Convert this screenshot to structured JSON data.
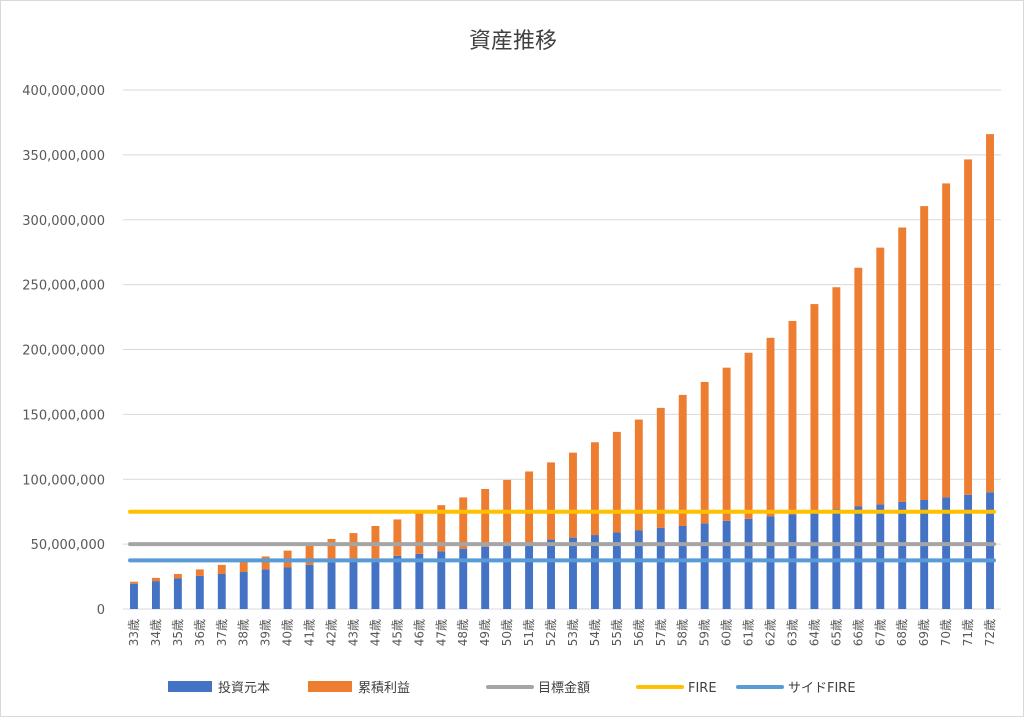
{
  "chart_data": {
    "type": "bar",
    "stacked": true,
    "title": "資産推移",
    "xlabel": "",
    "ylabel": "",
    "ylim": [
      0,
      400000000
    ],
    "ytick_step": 50000000,
    "yticks": [
      "0",
      "50,000,000",
      "100,000,000",
      "150,000,000",
      "200,000,000",
      "250,000,000",
      "300,000,000",
      "350,000,000",
      "400,000,000"
    ],
    "grid": true,
    "legend_position": "bottom",
    "categories": [
      "33歳",
      "34歳",
      "35歳",
      "36歳",
      "37歳",
      "38歳",
      "39歳",
      "40歳",
      "41歳",
      "42歳",
      "43歳",
      "44歳",
      "45歳",
      "46歳",
      "47歳",
      "48歳",
      "49歳",
      "50歳",
      "51歳",
      "52歳",
      "53歳",
      "54歳",
      "55歳",
      "56歳",
      "57歳",
      "58歳",
      "59歳",
      "60歳",
      "61歳",
      "62歳",
      "63歳",
      "64歳",
      "65歳",
      "66歳",
      "67歳",
      "68歳",
      "69歳",
      "70歳",
      "71歳",
      "72歳"
    ],
    "series": [
      {
        "name": "投資元本",
        "color": "#4472c4",
        "kind": "bar",
        "values": [
          19500000,
          21500000,
          23500000,
          25500000,
          27000000,
          28500000,
          30500000,
          32000000,
          34000000,
          36000000,
          37500000,
          39000000,
          41000000,
          42500000,
          44500000,
          46500000,
          48000000,
          50000000,
          51500000,
          53500000,
          55000000,
          57000000,
          59000000,
          60500000,
          62500000,
          64000000,
          66000000,
          68000000,
          69500000,
          71500000,
          73000000,
          75000000,
          77000000,
          79000000,
          80500000,
          82500000,
          84000000,
          86000000,
          88000000,
          90000000
        ]
      },
      {
        "name": "累積利益",
        "color": "#ed7d31",
        "kind": "bar",
        "values": [
          1500000,
          2500000,
          3500000,
          5000000,
          7000000,
          8500000,
          10000000,
          13000000,
          15000000,
          18000000,
          21000000,
          25000000,
          28000000,
          32000000,
          35500000,
          39500000,
          44500000,
          49500000,
          54500000,
          59500000,
          65500000,
          71500000,
          77500000,
          85500000,
          92500000,
          101000000,
          109000000,
          118000000,
          128000000,
          137500000,
          149000000,
          160000000,
          171000000,
          184000000,
          198000000,
          211500000,
          226500000,
          242000000,
          258500000,
          276000000
        ]
      },
      {
        "name": "目標金額",
        "color": "#a5a5a5",
        "kind": "hline",
        "value": 50000000
      },
      {
        "name": "FIRE",
        "color": "#ffc000",
        "kind": "hline",
        "value": 75000000
      },
      {
        "name": "サイドFIRE",
        "color": "#5b9bd5",
        "kind": "hline",
        "value": 37500000
      }
    ]
  }
}
